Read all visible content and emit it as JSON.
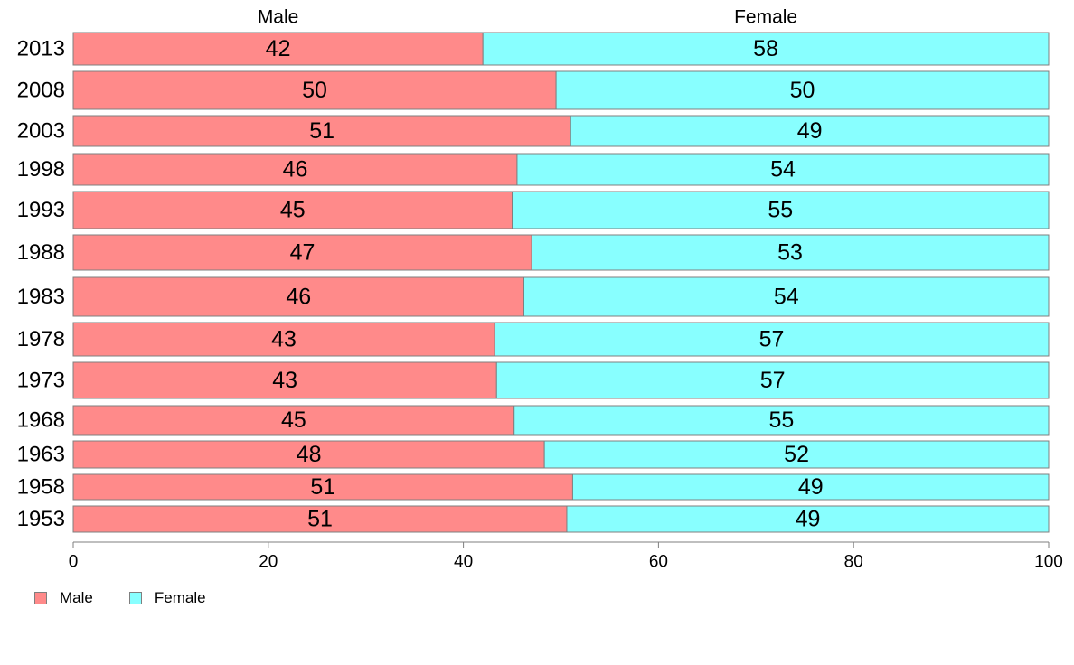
{
  "chart_data": {
    "type": "bar",
    "orientation": "horizontal",
    "stacked": true,
    "categories": [
      "2013",
      "2008",
      "2003",
      "1998",
      "1993",
      "1988",
      "1983",
      "1978",
      "1973",
      "1968",
      "1963",
      "1958",
      "1953"
    ],
    "series": [
      {
        "name": "Male",
        "color": "#ff8a8a",
        "values": [
          42,
          49.5,
          51,
          45.5,
          45,
          47,
          46.2,
          43.2,
          43.4,
          45.2,
          48.3,
          51.2,
          50.6
        ],
        "labels": [
          "42",
          "50",
          "51",
          "46",
          "45",
          "47",
          "46",
          "43",
          "43",
          "45",
          "48",
          "51",
          "51"
        ]
      },
      {
        "name": "Female",
        "color": "#88ffff",
        "values": [
          58,
          50.5,
          49,
          54.5,
          55,
          53,
          53.8,
          56.8,
          56.6,
          54.8,
          51.7,
          48.8,
          49.4
        ],
        "labels": [
          "58",
          "50",
          "49",
          "54",
          "55",
          "53",
          "54",
          "57",
          "57",
          "55",
          "52",
          "49",
          "49"
        ]
      }
    ],
    "column_headers": [
      "Male",
      "Female"
    ],
    "x_ticks": [
      "0",
      "20",
      "40",
      "60",
      "80",
      "100"
    ],
    "xlim": [
      0,
      100
    ],
    "xlabel": "",
    "ylabel": "",
    "grid": false,
    "legend_position": "bottom-left"
  },
  "legend": {
    "items": [
      {
        "label": "Male",
        "color": "#ff8a8a"
      },
      {
        "label": "Female",
        "color": "#88ffff"
      }
    ]
  }
}
